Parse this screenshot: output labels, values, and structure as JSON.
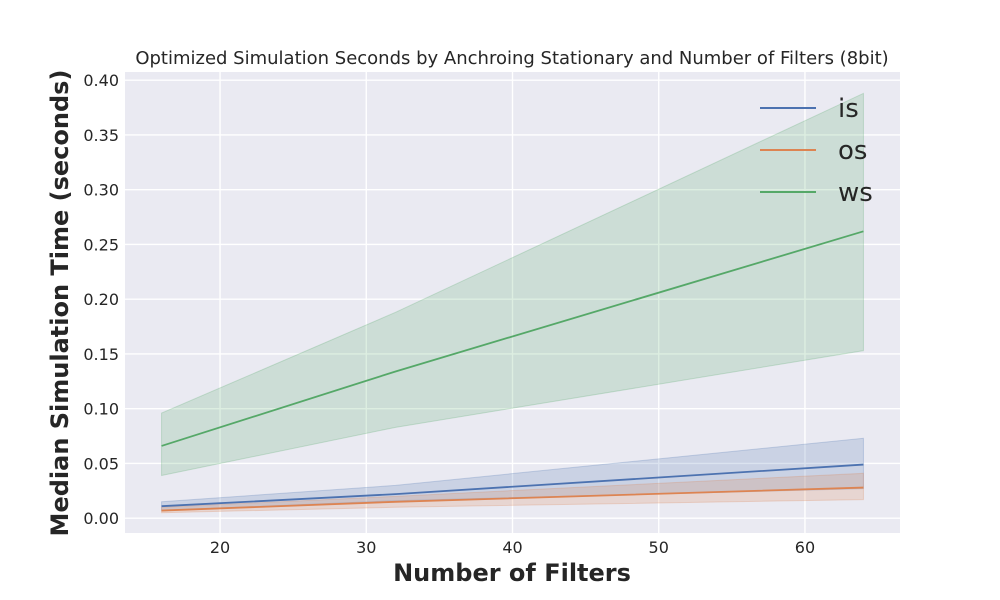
{
  "chart_data": {
    "type": "line",
    "title": "Optimized Simulation Seconds by Anchroing Stationary and Number of Filters (8bit)",
    "xlabel": "Number of Filters",
    "ylabel": "Median Simulation Time (seconds)",
    "xlim": [
      13.5,
      66.5
    ],
    "ylim": [
      -0.0135,
      0.4075
    ],
    "xticks": [
      20,
      30,
      40,
      50,
      60
    ],
    "xtick_labels": [
      "20",
      "30",
      "40",
      "50",
      "60"
    ],
    "yticks": [
      0.0,
      0.05,
      0.1,
      0.15,
      0.2,
      0.25,
      0.3,
      0.35,
      0.4
    ],
    "ytick_labels": [
      "0.00",
      "0.05",
      "0.10",
      "0.15",
      "0.20",
      "0.25",
      "0.30",
      "0.35",
      "0.40"
    ],
    "grid": true,
    "legend_position": "top-right",
    "x": [
      16,
      32,
      64
    ],
    "series": [
      {
        "name": "is",
        "color": "#4c72b0",
        "values": [
          0.011,
          0.022,
          0.049
        ],
        "lower": [
          0.007,
          0.016,
          0.027
        ],
        "upper": [
          0.015,
          0.03,
          0.073
        ]
      },
      {
        "name": "os",
        "color": "#dd8452",
        "values": [
          0.007,
          0.015,
          0.028
        ],
        "lower": [
          0.005,
          0.01,
          0.017
        ],
        "upper": [
          0.01,
          0.02,
          0.041
        ]
      },
      {
        "name": "ws",
        "color": "#55a868",
        "values": [
          0.066,
          0.134,
          0.262
        ],
        "lower": [
          0.039,
          0.083,
          0.153
        ],
        "upper": [
          0.096,
          0.188,
          0.388
        ]
      }
    ]
  }
}
